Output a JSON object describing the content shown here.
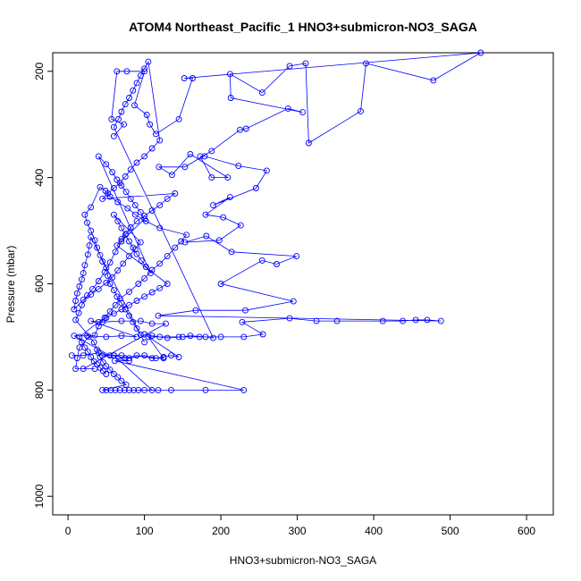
{
  "chart_data": {
    "type": "scatter",
    "title": "ATOM4 Northeast_Pacific_1 HNO3+submicron-NO3_SAGA",
    "xlabel": "HNO3+submicron-NO3_SAGA",
    "ylabel": "Pressure (mbar)",
    "xlim": [
      -20,
      635
    ],
    "ylim": [
      1035,
      165
    ],
    "y_reversed": true,
    "grid": false,
    "legend": "none",
    "x_ticks": [
      0,
      100,
      200,
      300,
      400,
      500,
      600
    ],
    "y_ticks": [
      200,
      400,
      600,
      800,
      1000
    ],
    "color": "#0000ff",
    "marker": "open-circle",
    "connect_points": true,
    "series": [
      {
        "points": [
          [
            92,
            800
          ],
          [
            118,
            800
          ],
          [
            135,
            800
          ],
          [
            180,
            800
          ],
          [
            230,
            800
          ],
          [
            61,
            745
          ],
          [
            80,
            745
          ],
          [
            45,
            735
          ],
          [
            60,
            735
          ],
          [
            75,
            740
          ],
          [
            90,
            735
          ],
          [
            110,
            740
          ],
          [
            125,
            740
          ],
          [
            105,
            700
          ],
          [
            145,
            700
          ],
          [
            172,
            700
          ],
          [
            200,
            700
          ],
          [
            230,
            700
          ],
          [
            255,
            695
          ],
          [
            228,
            672
          ],
          [
            290,
            665
          ],
          [
            325,
            670
          ],
          [
            352,
            670
          ],
          [
            412,
            670
          ],
          [
            438,
            670
          ],
          [
            455,
            668
          ],
          [
            470,
            668
          ],
          [
            488,
            670
          ],
          [
            118,
            660
          ],
          [
            167,
            650
          ],
          [
            232,
            650
          ],
          [
            295,
            633
          ],
          [
            200,
            600
          ],
          [
            254,
            556
          ],
          [
            273,
            563
          ],
          [
            299,
            548
          ],
          [
            214,
            540
          ],
          [
            181,
            510
          ],
          [
            153,
            522
          ],
          [
            198,
            518
          ],
          [
            226,
            490
          ],
          [
            203,
            475
          ],
          [
            180,
            470
          ],
          [
            212,
            437
          ],
          [
            190,
            452
          ],
          [
            246,
            420
          ],
          [
            260,
            387
          ],
          [
            223,
            378
          ],
          [
            179,
            360
          ],
          [
            173,
            360
          ],
          [
            188,
            400
          ],
          [
            209,
            400
          ],
          [
            160,
            356
          ],
          [
            136,
            395
          ],
          [
            119,
            380
          ],
          [
            153,
            380
          ],
          [
            188,
            350
          ],
          [
            225,
            310
          ],
          [
            233,
            308
          ],
          [
            288,
            270
          ],
          [
            307,
            277
          ],
          [
            213,
            250
          ],
          [
            212,
            205
          ],
          [
            254,
            240
          ],
          [
            290,
            190
          ],
          [
            311,
            185
          ],
          [
            315,
            335
          ],
          [
            383,
            275
          ],
          [
            390,
            185
          ],
          [
            478,
            217
          ],
          [
            540,
            165
          ],
          [
            152,
            213
          ],
          [
            163,
            213
          ],
          [
            145,
            290
          ],
          [
            115,
            318
          ],
          [
            107,
            300
          ],
          [
            103,
            282
          ],
          [
            87,
            264
          ],
          [
            100,
            200
          ],
          [
            77,
            200
          ],
          [
            64,
            200
          ],
          [
            57,
            290
          ],
          [
            73,
            300
          ],
          [
            60,
            322
          ]
        ]
      },
      {
        "points": [
          [
            5,
            735
          ],
          [
            20,
            735
          ],
          [
            40,
            730
          ],
          [
            55,
            735
          ],
          [
            8,
            698
          ],
          [
            25,
            698
          ],
          [
            50,
            700
          ],
          [
            70,
            698
          ],
          [
            90,
            700
          ],
          [
            30,
            670
          ],
          [
            45,
            672
          ],
          [
            70,
            670
          ],
          [
            95,
            670
          ],
          [
            110,
            675
          ],
          [
            128,
            675
          ],
          [
            20,
            760
          ],
          [
            35,
            760
          ],
          [
            10,
            760
          ],
          [
            12,
            740
          ],
          [
            15,
            720
          ],
          [
            27,
            700
          ],
          [
            35,
            697
          ],
          [
            40,
            680
          ],
          [
            48,
            664
          ],
          [
            55,
            652
          ],
          [
            62,
            640
          ],
          [
            68,
            628
          ],
          [
            80,
            615
          ],
          [
            92,
            600
          ],
          [
            100,
            590
          ],
          [
            110,
            574
          ],
          [
            120,
            562
          ],
          [
            130,
            548
          ],
          [
            140,
            532
          ],
          [
            148,
            520
          ],
          [
            155,
            508
          ],
          [
            120,
            495
          ],
          [
            102,
            482
          ],
          [
            88,
            470
          ],
          [
            78,
            458
          ],
          [
            65,
            446
          ],
          [
            55,
            436
          ],
          [
            49,
            425
          ],
          [
            42,
            418
          ],
          [
            30,
            456
          ],
          [
            22,
            470
          ],
          [
            25,
            485
          ],
          [
            30,
            500
          ],
          [
            35,
            518
          ],
          [
            38,
            532
          ],
          [
            42,
            546
          ],
          [
            45,
            558
          ],
          [
            50,
            570
          ],
          [
            52,
            585
          ],
          [
            55,
            600
          ],
          [
            60,
            612
          ],
          [
            64,
            624
          ],
          [
            70,
            636
          ],
          [
            75,
            648
          ],
          [
            80,
            660
          ],
          [
            85,
            672
          ],
          [
            90,
            684
          ],
          [
            95,
            696
          ],
          [
            100,
            710
          ],
          [
            30,
            512
          ],
          [
            28,
            528
          ],
          [
            26,
            545
          ],
          [
            22,
            565
          ],
          [
            20,
            580
          ],
          [
            18,
            592
          ],
          [
            15,
            605
          ],
          [
            12,
            618
          ],
          [
            10,
            632
          ],
          [
            8,
            648
          ],
          [
            20,
            630
          ],
          [
            30,
            620
          ],
          [
            40,
            610
          ],
          [
            50,
            598
          ],
          [
            58,
            588
          ],
          [
            65,
            575
          ],
          [
            72,
            562
          ],
          [
            80,
            548
          ],
          [
            88,
            535
          ],
          [
            95,
            522
          ],
          [
            60,
            470
          ],
          [
            65,
            482
          ],
          [
            70,
            495
          ],
          [
            75,
            508
          ],
          [
            80,
            520
          ],
          [
            85,
            532
          ],
          [
            90,
            544
          ],
          [
            96,
            556
          ],
          [
            102,
            568
          ],
          [
            108,
            580
          ],
          [
            40,
            360
          ],
          [
            50,
            375
          ],
          [
            58,
            390
          ],
          [
            64,
            404
          ],
          [
            70,
            415
          ],
          [
            76,
            427
          ],
          [
            82,
            440
          ],
          [
            88,
            452
          ],
          [
            95,
            465
          ],
          [
            100,
            478
          ],
          [
            70,
            520
          ],
          [
            62,
            540
          ],
          [
            55,
            560
          ],
          [
            48,
            578
          ],
          [
            40,
            595
          ],
          [
            32,
            610
          ],
          [
            25,
            622
          ],
          [
            18,
            640
          ],
          [
            14,
            655
          ],
          [
            10,
            668
          ],
          [
            34,
            710
          ],
          [
            38,
            724
          ],
          [
            42,
            738
          ],
          [
            46,
            748
          ],
          [
            50,
            755
          ],
          [
            55,
            762
          ],
          [
            60,
            770
          ],
          [
            65,
            776
          ],
          [
            70,
            783
          ],
          [
            76,
            790
          ],
          [
            45,
            800
          ],
          [
            50,
            800
          ],
          [
            56,
            800
          ],
          [
            62,
            800
          ],
          [
            68,
            800
          ],
          [
            74,
            800
          ],
          [
            80,
            800
          ],
          [
            86,
            800
          ],
          [
            100,
            800
          ],
          [
            110,
            800
          ],
          [
            60,
            735
          ],
          [
            70,
            735
          ],
          [
            80,
            740
          ],
          [
            100,
            735
          ],
          [
            115,
            740
          ],
          [
            125,
            738
          ],
          [
            135,
            735
          ],
          [
            145,
            738
          ],
          [
            100,
            695
          ],
          [
            110,
            698
          ],
          [
            120,
            700
          ],
          [
            130,
            702
          ],
          [
            150,
            700
          ],
          [
            160,
            698
          ],
          [
            180,
            700
          ],
          [
            190,
            702
          ],
          [
            60,
            305
          ],
          [
            66,
            290
          ],
          [
            70,
            276
          ],
          [
            75,
            262
          ],
          [
            80,
            250
          ],
          [
            85,
            236
          ],
          [
            90,
            222
          ],
          [
            95,
            208
          ],
          [
            100,
            195
          ],
          [
            105,
            182
          ],
          [
            120,
            330
          ],
          [
            110,
            345
          ],
          [
            100,
            360
          ],
          [
            90,
            372
          ],
          [
            82,
            385
          ],
          [
            75,
            398
          ],
          [
            68,
            410
          ],
          [
            60,
            420
          ],
          [
            52,
            430
          ],
          [
            45,
            440
          ],
          [
            140,
            430
          ],
          [
            130,
            440
          ],
          [
            120,
            452
          ],
          [
            110,
            462
          ],
          [
            100,
            472
          ],
          [
            90,
            482
          ],
          [
            82,
            494
          ],
          [
            76,
            506
          ],
          [
            70,
            516
          ],
          [
            64,
            528
          ],
          [
            130,
            600
          ],
          [
            120,
            608
          ],
          [
            110,
            616
          ],
          [
            100,
            624
          ],
          [
            90,
            632
          ],
          [
            80,
            640
          ],
          [
            70,
            648
          ],
          [
            60,
            656
          ],
          [
            50,
            664
          ],
          [
            40,
            672
          ],
          [
            15,
            700
          ],
          [
            18,
            710
          ],
          [
            22,
            720
          ],
          [
            26,
            728
          ],
          [
            30,
            738
          ],
          [
            34,
            746
          ],
          [
            38,
            752
          ],
          [
            42,
            758
          ],
          [
            46,
            764
          ],
          [
            50,
            770
          ]
        ]
      }
    ]
  }
}
